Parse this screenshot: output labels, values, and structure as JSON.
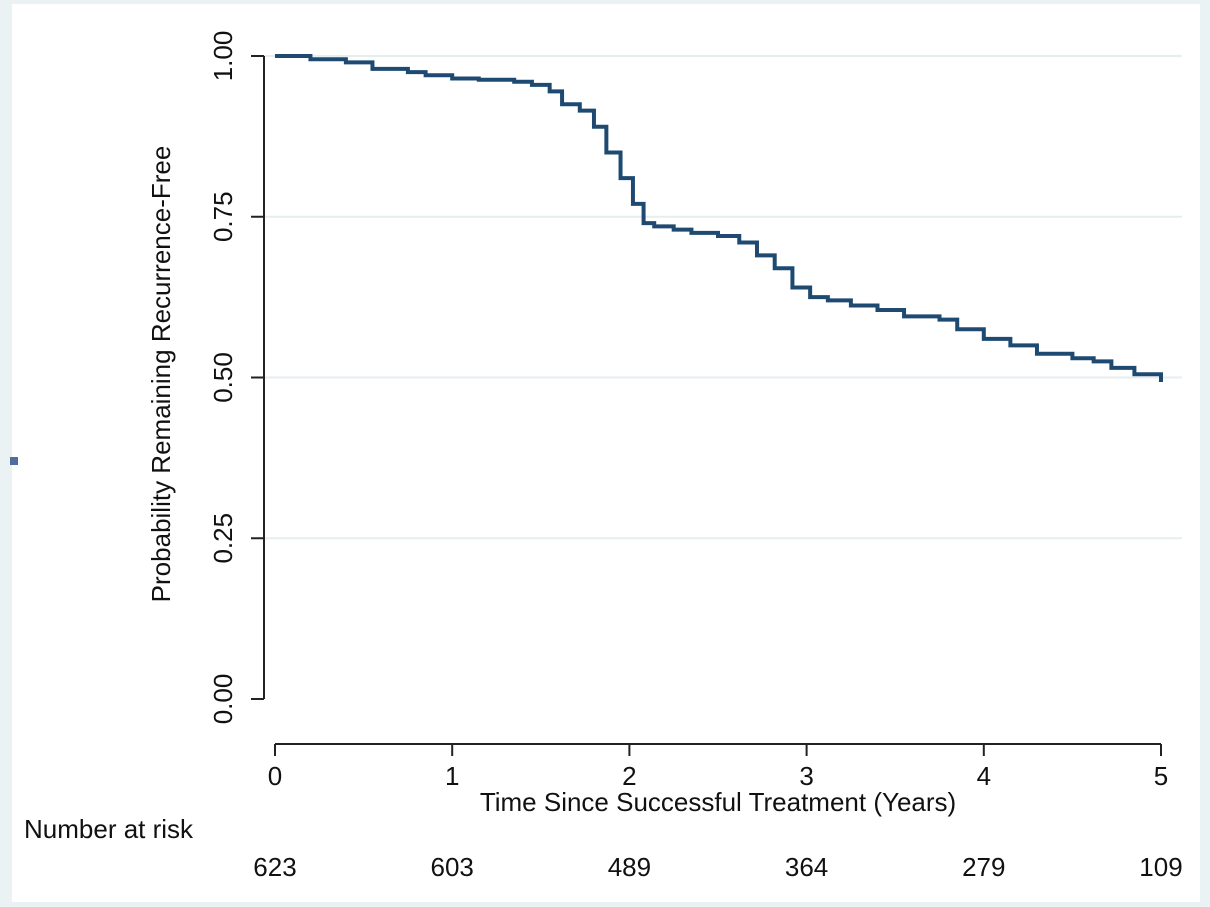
{
  "chart_data": {
    "type": "line",
    "title": "",
    "xlabel": "Time Since Successful Treatment (Years)",
    "ylabel": "Probability Remaining Recurrence-Free",
    "xlim": [
      0,
      5
    ],
    "ylim": [
      0,
      1
    ],
    "x_ticks": [
      0,
      1,
      2,
      3,
      4,
      5
    ],
    "x_tick_labels": [
      "0",
      "1",
      "2",
      "3",
      "4",
      "5"
    ],
    "y_ticks": [
      0,
      0.25,
      0.5,
      0.75,
      1
    ],
    "y_tick_labels": [
      "0.00",
      "0.25",
      "0.50",
      "0.75",
      "1.00"
    ],
    "grid": "horizontal",
    "legend": "none",
    "line_color": "#1e4a72",
    "series": [
      {
        "x": [
          0,
          0.2,
          0.4,
          0.55,
          0.75,
          0.85,
          1.0,
          1.15,
          1.35,
          1.45,
          1.55,
          1.62,
          1.72,
          1.8,
          1.87,
          1.95,
          2.02,
          2.08,
          2.14,
          2.25,
          2.35,
          2.5,
          2.62,
          2.72,
          2.82,
          2.92,
          3.02,
          3.12,
          3.25,
          3.4,
          3.55,
          3.75,
          3.85,
          4.0,
          4.15,
          4.3,
          4.5,
          4.62,
          4.72,
          4.85,
          5.0
        ],
        "y": [
          1.0,
          0.995,
          0.99,
          0.98,
          0.975,
          0.97,
          0.965,
          0.963,
          0.96,
          0.955,
          0.945,
          0.925,
          0.915,
          0.89,
          0.85,
          0.81,
          0.77,
          0.74,
          0.735,
          0.73,
          0.725,
          0.72,
          0.71,
          0.69,
          0.67,
          0.64,
          0.625,
          0.62,
          0.612,
          0.605,
          0.595,
          0.59,
          0.575,
          0.56,
          0.55,
          0.537,
          0.53,
          0.525,
          0.515,
          0.505,
          0.493
        ]
      }
    ],
    "risk_table": {
      "label": "Number at risk",
      "x": [
        0,
        1,
        2,
        3,
        4,
        5
      ],
      "values": [
        "623",
        "603",
        "489",
        "364",
        "279",
        "109"
      ]
    }
  }
}
